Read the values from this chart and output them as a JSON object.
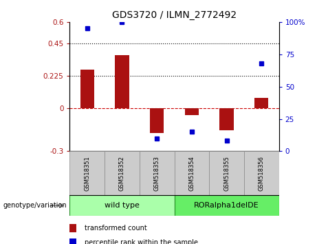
{
  "title": "GDS3720 / ILMN_2772492",
  "samples": [
    "GSM518351",
    "GSM518352",
    "GSM518353",
    "GSM518354",
    "GSM518355",
    "GSM518356"
  ],
  "bar_values": [
    0.27,
    0.37,
    -0.175,
    -0.05,
    -0.155,
    0.07
  ],
  "percentile_values": [
    95,
    100,
    10,
    15,
    8,
    68
  ],
  "bar_color": "#aa1111",
  "dot_color": "#0000cc",
  "ylim_left": [
    -0.3,
    0.6
  ],
  "ylim_right": [
    0,
    100
  ],
  "yticks_left": [
    -0.3,
    0,
    0.225,
    0.45,
    0.6
  ],
  "ytick_labels_left": [
    "-0.3",
    "0",
    "0.225",
    "0.45",
    "0.6"
  ],
  "yticks_right": [
    0,
    25,
    50,
    75,
    100
  ],
  "ytick_labels_right": [
    "0",
    "25",
    "50",
    "75",
    "100%"
  ],
  "hlines": [
    0.225,
    0.45
  ],
  "hline_zero_color": "#cc0000",
  "hline_dotted_color": "#000000",
  "groups": [
    {
      "label": "wild type",
      "indices": [
        0,
        1,
        2
      ],
      "color": "#aaffaa"
    },
    {
      "label": "RORalpha1delDE",
      "indices": [
        3,
        4,
        5
      ],
      "color": "#66ee66"
    }
  ],
  "genotype_label": "genotype/variation",
  "legend_bar_label": "transformed count",
  "legend_dot_label": "percentile rank within the sample",
  "bg_color_plot": "#ffffff",
  "sample_bg_color": "#cccccc",
  "bar_width": 0.4
}
